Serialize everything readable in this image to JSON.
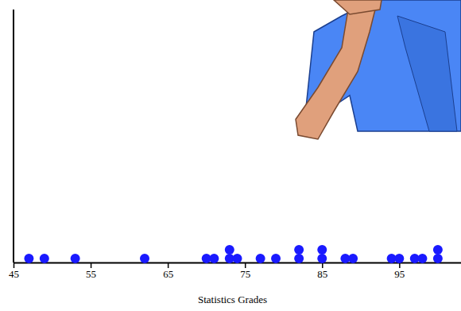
{
  "chart_data": {
    "type": "dot",
    "x_label": "Statistics Grades",
    "values": [
      47,
      49,
      53,
      62,
      70,
      71,
      73,
      73,
      74,
      77,
      79,
      82,
      82,
      85,
      85,
      88,
      89,
      94,
      95,
      97,
      98,
      100,
      100
    ],
    "color": "#1a1aff",
    "xlim": [
      45,
      103
    ],
    "xticks": [
      45,
      55,
      65,
      75,
      85,
      95
    ],
    "grid": false
  }
}
